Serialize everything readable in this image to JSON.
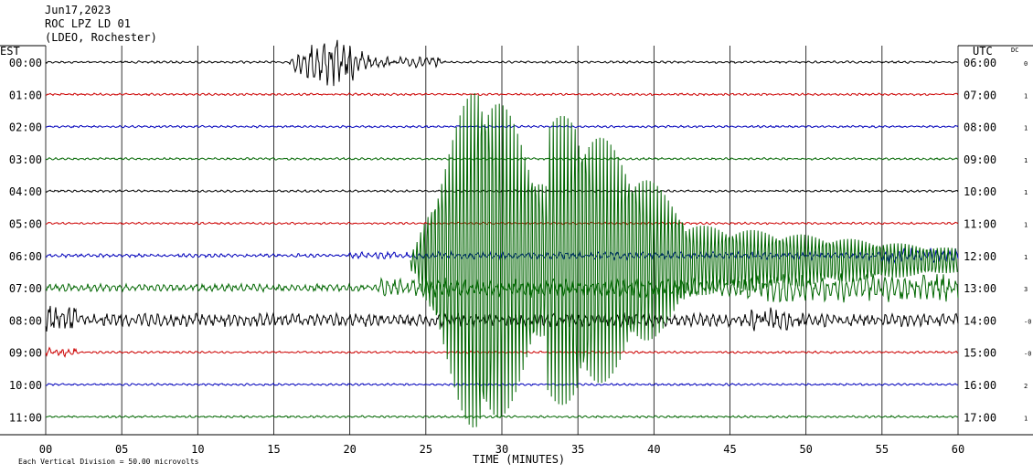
{
  "header": {
    "date": "Jun17,2023",
    "station": "ROC LPZ LD 01",
    "network": "(LDEO, Rochester)"
  },
  "labels": {
    "left_tz": "EST",
    "right_tz": "UTC",
    "dc_header": "DC",
    "x_axis_title": "TIME (MINUTES)",
    "footer": "Each Vertical Division =   50.00 microvolts"
  },
  "chart_data": {
    "type": "line",
    "title": "ROC LPZ LD 01",
    "xlabel": "TIME (MINUTES)",
    "ylabel": "",
    "xlim": [
      0,
      60
    ],
    "x_ticks": [
      "00",
      "05",
      "10",
      "15",
      "20",
      "25",
      "30",
      "35",
      "40",
      "45",
      "50",
      "55",
      "60"
    ],
    "grid": true,
    "rows": [
      {
        "left": "00:00",
        "right": "06:00",
        "dc": "0",
        "color": "#000000"
      },
      {
        "left": "01:00",
        "right": "07:00",
        "dc": "1",
        "color": "#cc0000"
      },
      {
        "left": "02:00",
        "right": "08:00",
        "dc": "1",
        "color": "#0000bb"
      },
      {
        "left": "03:00",
        "right": "09:00",
        "dc": "1",
        "color": "#006600"
      },
      {
        "left": "04:00",
        "right": "10:00",
        "dc": "1",
        "color": "#000000"
      },
      {
        "left": "05:00",
        "right": "11:00",
        "dc": "1",
        "color": "#cc0000"
      },
      {
        "left": "06:00",
        "right": "12:00",
        "dc": "1",
        "color": "#0000bb"
      },
      {
        "left": "07:00",
        "right": "13:00",
        "dc": "3",
        "color": "#006600"
      },
      {
        "left": "08:00",
        "right": "14:00",
        "dc": "-0",
        "color": "#000000"
      },
      {
        "left": "09:00",
        "right": "15:00",
        "dc": "-0",
        "color": "#cc0000"
      },
      {
        "left": "10:00",
        "right": "16:00",
        "dc": "2",
        "color": "#0000bb"
      },
      {
        "left": "11:00",
        "right": "17:00",
        "dc": "1",
        "color": "#006600"
      }
    ],
    "event": {
      "row": 0,
      "p_arrival_min": 16.0,
      "s_arrival_min": 17.5,
      "surface_wave_start_min": 24.0,
      "note_row_color": "#006600"
    }
  }
}
